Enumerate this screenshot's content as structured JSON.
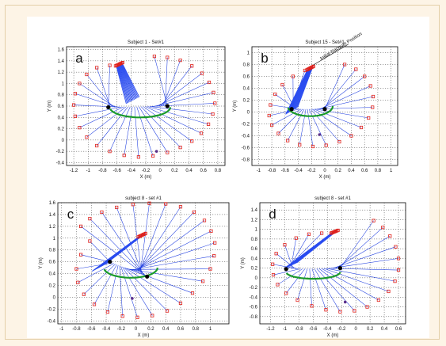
{
  "chart_data": [
    {
      "type": "scatter",
      "letter": "a",
      "title": "Subject 1 - Set#1",
      "xlabel": "X (m)",
      "ylabel": "Y (m)",
      "xlim": [
        -1.3,
        0.9
      ],
      "ylim": [
        -0.45,
        1.65
      ],
      "xticks": [
        "-1.2",
        "-1",
        "-0.8",
        "-0.6",
        "-0.4",
        "-0.2",
        "0",
        "0.2",
        "0.4",
        "0.6",
        "0.8"
      ],
      "yticks": [
        "-0.4",
        "-0.2",
        "0",
        "0.2",
        "0.4",
        "0.6",
        "0.8",
        "1",
        "1.2",
        "1.4",
        "1.6"
      ],
      "grid": true,
      "endpoints": [
        [
          -0.7,
          1.32
        ],
        [
          -0.88,
          1.28
        ],
        [
          -1.02,
          1.16
        ],
        [
          -1.12,
          1.0
        ],
        [
          -1.18,
          0.82
        ],
        [
          -1.2,
          0.62
        ],
        [
          -1.18,
          0.42
        ],
        [
          -1.12,
          0.22
        ],
        [
          -1.02,
          0.05
        ],
        [
          -0.88,
          -0.1
        ],
        [
          -0.7,
          -0.2
        ],
        [
          -0.5,
          -0.27
        ],
        [
          -0.3,
          -0.3
        ],
        [
          -0.1,
          -0.28
        ],
        [
          0.1,
          -0.22
        ],
        [
          0.28,
          -0.13
        ],
        [
          0.44,
          -0.02
        ],
        [
          0.57,
          0.12
        ],
        [
          0.67,
          0.28
        ],
        [
          0.73,
          0.46
        ],
        [
          0.76,
          0.65
        ],
        [
          0.74,
          0.84
        ],
        [
          0.68,
          1.02
        ],
        [
          0.58,
          1.18
        ],
        [
          0.44,
          1.31
        ],
        [
          0.28,
          1.41
        ],
        [
          0.1,
          1.46
        ],
        [
          -0.08,
          1.48
        ]
      ],
      "fan_start": [
        -0.57,
        1.34
      ],
      "fan_end": [
        -0.38,
        0.7
      ],
      "hub_start": [
        -0.72,
        0.58
      ],
      "hub_end": [
        0.1,
        0.6
      ],
      "loop": {
        "cx": -0.28,
        "cy": 0.58,
        "rx": 0.42,
        "ry": 0.18
      },
      "dot": [
        -0.05,
        -0.2
      ]
    },
    {
      "type": "scatter",
      "letter": "b",
      "title": "Subject 15 - Set#1",
      "xlabel": "X (m)",
      "ylabel": "Y (m)",
      "xlim": [
        -1.1,
        1.1
      ],
      "ylim": [
        -0.9,
        1.1
      ],
      "xticks": [
        "-1",
        "-0.8",
        "-0.6",
        "-0.4",
        "-0.2",
        "0",
        "0.2",
        "0.4",
        "0.6",
        "0.8",
        "1"
      ],
      "yticks": [
        "-0.8",
        "-0.6",
        "-0.4",
        "-0.2",
        "0",
        "0.2",
        "0.4",
        "0.6",
        "0.8",
        "1"
      ],
      "grid": true,
      "annotation": "Initial Racquet Position",
      "endpoints": [
        [
          -0.3,
          0.7
        ],
        [
          -0.48,
          0.6
        ],
        [
          -0.64,
          0.46
        ],
        [
          -0.75,
          0.3
        ],
        [
          -0.82,
          0.12
        ],
        [
          -0.84,
          -0.06
        ],
        [
          -0.8,
          -0.22
        ],
        [
          -0.7,
          -0.36
        ],
        [
          -0.56,
          -0.48
        ],
        [
          -0.38,
          -0.55
        ],
        [
          -0.18,
          -0.58
        ],
        [
          0.02,
          -0.56
        ],
        [
          0.22,
          -0.5
        ],
        [
          0.4,
          -0.4
        ],
        [
          0.55,
          -0.26
        ],
        [
          0.66,
          -0.1
        ],
        [
          0.72,
          0.08
        ],
        [
          0.73,
          0.26
        ],
        [
          0.69,
          0.44
        ],
        [
          0.6,
          0.6
        ],
        [
          0.47,
          0.72
        ],
        [
          0.3,
          0.8
        ]
      ],
      "fan_start": [
        -0.22,
        0.74
      ],
      "fan_end": [
        -0.5,
        0.02
      ],
      "hub_start": [
        -0.5,
        0.05
      ],
      "hub_end": [
        0.0,
        0.05
      ],
      "loop": {
        "cx": -0.22,
        "cy": 0.1,
        "rx": 0.34,
        "ry": 0.17
      },
      "dot": [
        -0.08,
        -0.38
      ]
    },
    {
      "type": "scatter",
      "letter": "c",
      "title": "subject 8 - set #1",
      "xlabel": "X (m)",
      "ylabel": "Y (m)",
      "xlim": [
        -1.05,
        1.25
      ],
      "ylim": [
        -0.45,
        1.6
      ],
      "xticks": [
        "-1",
        "-0.8",
        "-0.6",
        "-0.4",
        "-0.2",
        "0",
        "0.2",
        "0.4",
        "0.6",
        "0.8",
        "1"
      ],
      "yticks": [
        "-0.4",
        "-0.2",
        "0",
        "0.2",
        "0.4",
        "0.6",
        "0.8",
        "1",
        "1.2",
        "1.4",
        "1.6"
      ],
      "grid": true,
      "endpoints": [
        [
          -0.62,
          0.95
        ],
        [
          -0.74,
          0.72
        ],
        [
          -0.8,
          0.48
        ],
        [
          -0.78,
          0.25
        ],
        [
          -0.7,
          0.05
        ],
        [
          -0.56,
          -0.12
        ],
        [
          -0.38,
          -0.25
        ],
        [
          -0.18,
          -0.32
        ],
        [
          0.02,
          -0.34
        ],
        [
          0.22,
          -0.31
        ],
        [
          0.42,
          -0.23
        ],
        [
          0.6,
          -0.1
        ],
        [
          0.76,
          0.07
        ],
        [
          0.9,
          0.27
        ],
        [
          1.0,
          0.48
        ],
        [
          1.05,
          0.7
        ],
        [
          1.06,
          0.92
        ],
        [
          1.01,
          1.12
        ],
        [
          0.92,
          1.3
        ],
        [
          0.78,
          1.44
        ],
        [
          0.6,
          1.53
        ],
        [
          0.4,
          1.58
        ],
        [
          0.18,
          1.59
        ],
        [
          -0.04,
          1.57
        ],
        [
          -0.26,
          1.52
        ],
        [
          -0.46,
          1.44
        ],
        [
          -0.62,
          1.33
        ],
        [
          -0.74,
          1.2
        ]
      ],
      "fan_start": [
        0.08,
        1.05
      ],
      "fan_end": [
        -0.5,
        0.5
      ],
      "hub_start": [
        -0.35,
        0.6
      ],
      "hub_end": [
        0.15,
        0.35
      ],
      "loop": {
        "cx": -0.07,
        "cy": 0.5,
        "rx": 0.36,
        "ry": 0.17
      },
      "dot": [
        -0.05,
        -0.02
      ]
    },
    {
      "type": "scatter",
      "letter": "d",
      "title": "subject 8 - set #1",
      "xlabel": "X (m)",
      "ylabel": "Y (m)",
      "xlim": [
        -1.35,
        0.7
      ],
      "ylim": [
        -0.95,
        1.55
      ],
      "xticks": [
        "-1.2",
        "-1",
        "-0.8",
        "-0.6",
        "-0.4",
        "-0.2",
        "0",
        "0.2",
        "0.4",
        "0.6"
      ],
      "yticks": [
        "-0.8",
        "-0.6",
        "-0.4",
        "-0.2",
        "0",
        "0.2",
        "0.4",
        "0.6",
        "0.8",
        "1",
        "1.2",
        "1.4"
      ],
      "grid": true,
      "endpoints": [
        [
          -0.48,
          0.92
        ],
        [
          -0.66,
          0.9
        ],
        [
          -0.84,
          0.82
        ],
        [
          -1.0,
          0.68
        ],
        [
          -1.12,
          0.5
        ],
        [
          -1.17,
          0.28
        ],
        [
          -1.16,
          0.06
        ],
        [
          -1.1,
          -0.14
        ],
        [
          -0.98,
          -0.32
        ],
        [
          -0.82,
          -0.46
        ],
        [
          -0.62,
          -0.58
        ],
        [
          -0.42,
          -0.66
        ],
        [
          -0.22,
          -0.7
        ],
        [
          -0.02,
          -0.68
        ],
        [
          0.16,
          -0.6
        ],
        [
          0.32,
          -0.46
        ],
        [
          0.46,
          -0.28
        ],
        [
          0.55,
          -0.07
        ],
        [
          0.6,
          0.16
        ],
        [
          0.6,
          0.4
        ],
        [
          0.56,
          0.64
        ],
        [
          0.48,
          0.86
        ],
        [
          0.38,
          1.04
        ],
        [
          0.25,
          1.18
        ]
      ],
      "fan_start": [
        -0.3,
        0.95
      ],
      "fan_end": [
        -0.92,
        0.25
      ],
      "hub_start": [
        -0.98,
        0.18
      ],
      "hub_end": [
        -0.22,
        0.2
      ],
      "loop": {
        "cx": -0.6,
        "cy": 0.12,
        "rx": 0.38,
        "ry": 0.14
      },
      "dot": [
        -0.15,
        -0.5
      ]
    }
  ]
}
